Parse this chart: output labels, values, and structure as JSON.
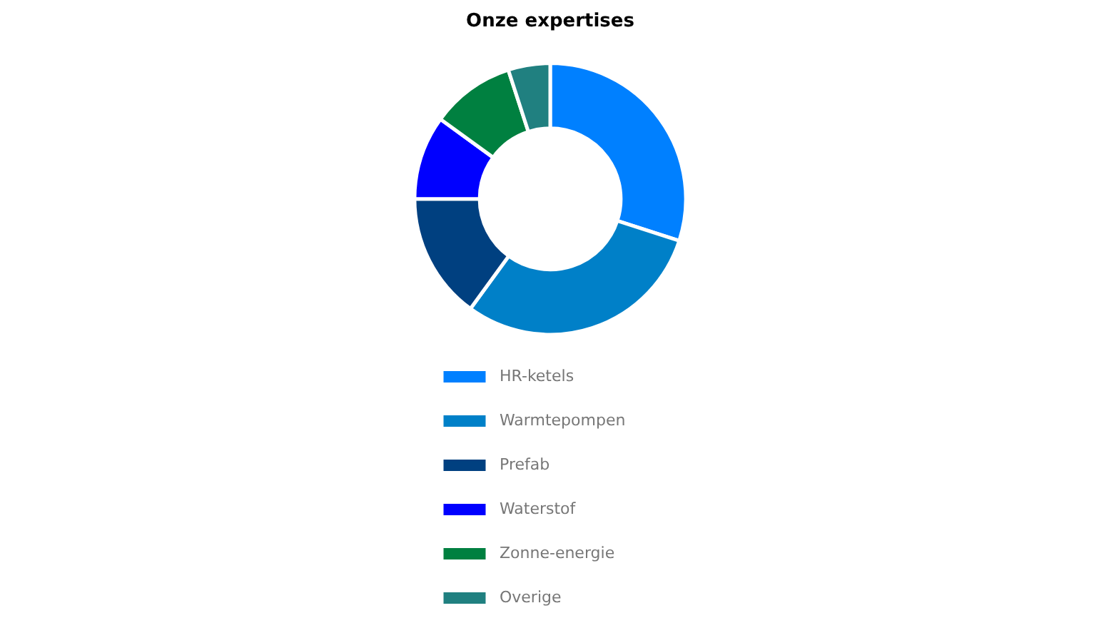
{
  "chart_data": {
    "type": "donut",
    "title": "Onze expertises",
    "legend": "bottom",
    "categories": [
      "HR-ketels",
      "Warmtepompen",
      "Prefab",
      "Waterstof",
      "Zonne-energie",
      "Overige"
    ],
    "values": [
      30,
      30,
      15,
      10,
      10,
      5
    ],
    "colors": [
      "#0080ff",
      "#0080c8",
      "#004080",
      "#0000ff",
      "#008040",
      "#208080"
    ]
  }
}
